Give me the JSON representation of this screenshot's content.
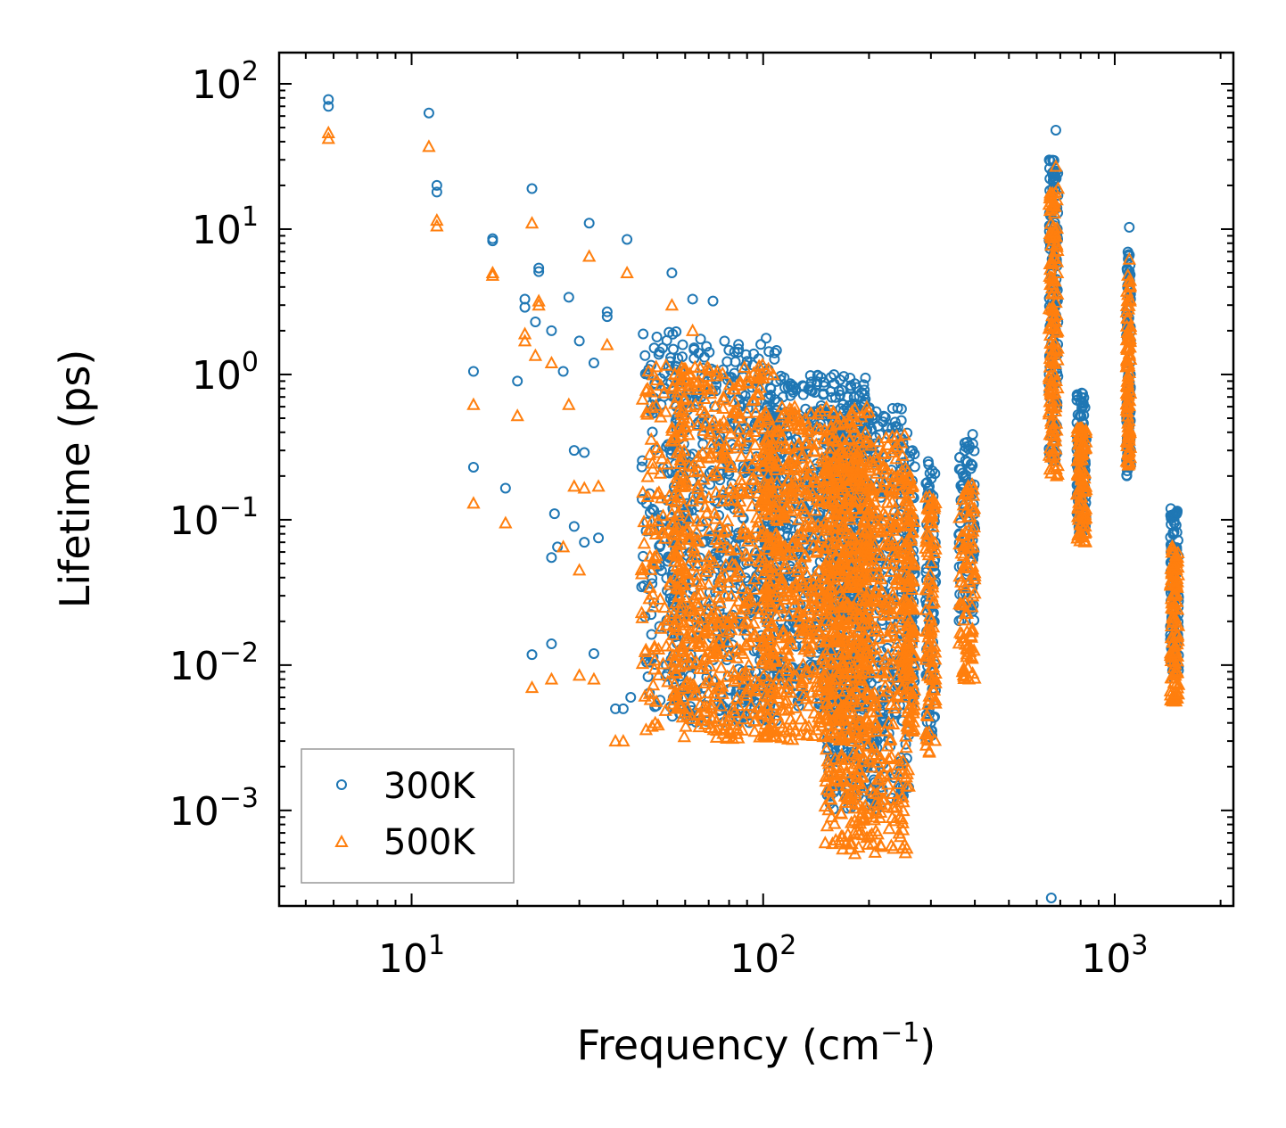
{
  "chart_data": {
    "type": "scatter",
    "xscale": "log",
    "yscale": "log",
    "xlabel": "Frequency (cm",
    "xlabel_exp": "−1",
    "xlabel_close": ")",
    "ylabel": "Lifetime (ps)",
    "xlim": [
      4.2,
      2175
    ],
    "ylim": [
      0.00022,
      164
    ],
    "x_ticks": [
      {
        "base": "10",
        "exp": "1",
        "value": 10
      },
      {
        "base": "10",
        "exp": "2",
        "value": 100
      },
      {
        "base": "10",
        "exp": "3",
        "value": 1000
      }
    ],
    "y_ticks": [
      {
        "base": "10",
        "exp": "2",
        "value": 100
      },
      {
        "base": "10",
        "exp": "1",
        "value": 10
      },
      {
        "base": "10",
        "exp": "0",
        "value": 1
      },
      {
        "base": "10",
        "exp": "−1",
        "value": 0.1
      },
      {
        "base": "10",
        "exp": "−2",
        "value": 0.01
      },
      {
        "base": "10",
        "exp": "−3",
        "value": 0.001
      }
    ],
    "legend_position": "bottom-left",
    "series": [
      {
        "name": "300K",
        "marker": "circle",
        "color": "#1f77b4",
        "points": [
          [
            5.8,
            78
          ],
          [
            5.8,
            70
          ],
          [
            11.2,
            63
          ],
          [
            11.8,
            20
          ],
          [
            11.8,
            18
          ],
          [
            17,
            8.6
          ],
          [
            17,
            8.3
          ],
          [
            22,
            19
          ],
          [
            23,
            5.4
          ],
          [
            23,
            5.1
          ],
          [
            15,
            1.05
          ],
          [
            15,
            0.23
          ],
          [
            20,
            0.9
          ],
          [
            18.5,
            0.165
          ],
          [
            21,
            3.3
          ],
          [
            21,
            2.9
          ],
          [
            22.5,
            2.3
          ],
          [
            25,
            2
          ],
          [
            28,
            3.4
          ],
          [
            32,
            11
          ],
          [
            36,
            2.7
          ],
          [
            36,
            2.5
          ],
          [
            41,
            8.5
          ],
          [
            55,
            5
          ],
          [
            63,
            3.3
          ],
          [
            72,
            3.2
          ],
          [
            25.5,
            0.11
          ],
          [
            29,
            0.3
          ],
          [
            31,
            0.29
          ],
          [
            22,
            0.0118
          ],
          [
            25,
            0.014
          ],
          [
            33,
            0.012
          ],
          [
            38,
            0.005
          ],
          [
            40,
            0.005
          ],
          [
            42,
            0.006
          ],
          [
            27,
            1.05
          ],
          [
            30,
            1.7
          ],
          [
            33,
            1.2
          ],
          [
            34,
            0.075
          ],
          [
            31,
            0.07
          ],
          [
            29,
            0.09
          ],
          [
            25,
            0.055
          ],
          [
            26,
            0.065
          ],
          [
            660,
            0.00025
          ],
          [
            680,
            48
          ],
          [
            1100,
            10.3
          ],
          [
            155,
            0.00125
          ]
        ],
        "clusters": [
          {
            "f": [
              45,
              60
            ],
            "y": [
              0.005,
              2
            ],
            "n": 150
          },
          {
            "f": [
              55,
              110
            ],
            "y": [
              0.004,
              1.8
            ],
            "n": 600
          },
          {
            "f": [
              100,
              200
            ],
            "y": [
              0.005,
              1.0
            ],
            "n": 700
          },
          {
            "f": [
              150,
              260
            ],
            "y": [
              0.001,
              0.6
            ],
            "n": 600
          },
          {
            "f": [
              255,
              270
            ],
            "y": [
              0.005,
              0.3
            ],
            "n": 100
          },
          {
            "f": [
              290,
              310
            ],
            "y": [
              0.003,
              0.27
            ],
            "n": 100
          },
          {
            "f": [
              360,
              400
            ],
            "y": [
              0.02,
              0.4
            ],
            "n": 100
          },
          {
            "f": [
              650,
              690
            ],
            "y": [
              0.25,
              30
            ],
            "n": 150
          },
          {
            "f": [
              780,
              830
            ],
            "y": [
              0.08,
              0.75
            ],
            "n": 100
          },
          {
            "f": [
              1080,
              1110
            ],
            "y": [
              0.2,
              7
            ],
            "n": 100
          },
          {
            "f": [
              1440,
              1520
            ],
            "y": [
              0.008,
              0.12
            ],
            "n": 120
          }
        ]
      },
      {
        "name": "500K",
        "marker": "triangle",
        "color": "#ff7f0e",
        "points": [
          [
            5.8,
            46
          ],
          [
            5.8,
            42
          ],
          [
            11.2,
            37
          ],
          [
            11.8,
            11.5
          ],
          [
            11.8,
            10.5
          ],
          [
            17,
            5
          ],
          [
            17,
            4.8
          ],
          [
            22,
            11
          ],
          [
            23,
            3.2
          ],
          [
            23,
            3
          ],
          [
            15,
            0.62
          ],
          [
            15,
            0.13
          ],
          [
            20,
            0.52
          ],
          [
            18.5,
            0.095
          ],
          [
            21,
            1.9
          ],
          [
            21,
            1.7
          ],
          [
            22.5,
            1.35
          ],
          [
            25,
            1.2
          ],
          [
            28,
            0.62
          ],
          [
            32,
            6.5
          ],
          [
            36,
            1.6
          ],
          [
            41,
            5
          ],
          [
            55,
            3
          ],
          [
            63,
            2
          ],
          [
            22,
            0.007
          ],
          [
            25,
            0.008
          ],
          [
            30,
            0.0085
          ],
          [
            33,
            0.008
          ],
          [
            38,
            0.003
          ],
          [
            40,
            0.003
          ],
          [
            29,
            0.17
          ],
          [
            31,
            0.165
          ],
          [
            34,
            0.17
          ],
          [
            27,
            0.065
          ],
          [
            30,
            0.045
          ],
          [
            680,
            27
          ],
          [
            1100,
            6.2
          ],
          [
            155,
            0.0012
          ]
        ],
        "clusters": [
          {
            "f": [
              45,
              60
            ],
            "y": [
              0.0035,
              1.2
            ],
            "n": 150
          },
          {
            "f": [
              55,
              110
            ],
            "y": [
              0.003,
              1.2
            ],
            "n": 600
          },
          {
            "f": [
              100,
              200
            ],
            "y": [
              0.003,
              0.6
            ],
            "n": 700
          },
          {
            "f": [
              150,
              260
            ],
            "y": [
              0.0005,
              0.4
            ],
            "n": 700
          },
          {
            "f": [
              255,
              270
            ],
            "y": [
              0.0035,
              0.2
            ],
            "n": 100
          },
          {
            "f": [
              290,
              310
            ],
            "y": [
              0.0025,
              0.17
            ],
            "n": 100
          },
          {
            "f": [
              360,
              400
            ],
            "y": [
              0.008,
              0.18
            ],
            "n": 100
          },
          {
            "f": [
              650,
              690
            ],
            "y": [
              0.2,
              20
            ],
            "n": 150
          },
          {
            "f": [
              780,
              830
            ],
            "y": [
              0.07,
              0.45
            ],
            "n": 100
          },
          {
            "f": [
              1080,
              1110
            ],
            "y": [
              0.2,
              5
            ],
            "n": 100
          },
          {
            "f": [
              1440,
              1520
            ],
            "y": [
              0.0055,
              0.07
            ],
            "n": 120
          }
        ]
      }
    ]
  }
}
